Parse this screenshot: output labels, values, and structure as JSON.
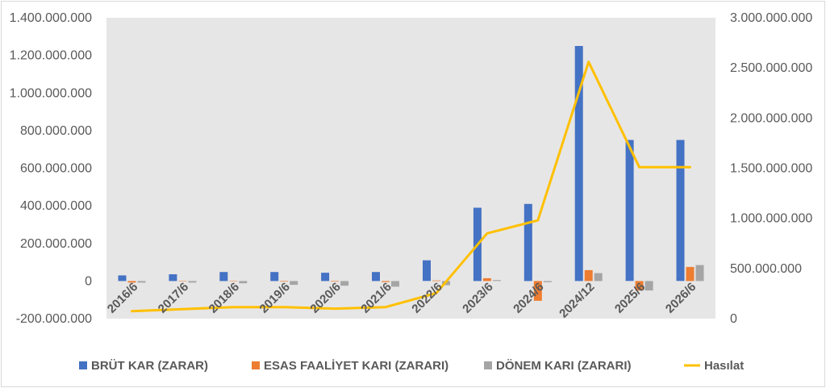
{
  "chart_data": {
    "type": "bar",
    "categories": [
      "2016/6",
      "2017/6",
      "2018/6",
      "2019/6",
      "2020/6",
      "2021/6",
      "2022/6",
      "2023/6",
      "2024/6",
      "2024/12",
      "2025/6",
      "2026/6"
    ],
    "series": [
      {
        "name": "BRÜT KAR (ZARAR)",
        "type": "bar",
        "axis": "left",
        "color": "#4472c4",
        "values": [
          30000000,
          36000000,
          48000000,
          48000000,
          44000000,
          48000000,
          110000000,
          390000000,
          410000000,
          1250000000,
          750000000,
          750000000
        ]
      },
      {
        "name": "ESAS FAALİYET KARI (ZARARI)",
        "type": "bar",
        "axis": "left",
        "color": "#ed7d31",
        "values": [
          -8000000,
          -2000000,
          -2000000,
          -3000000,
          -3000000,
          -5000000,
          3000000,
          15000000,
          -105000000,
          58000000,
          -50000000,
          75000000
        ]
      },
      {
        "name": "DÖNEM KARI (ZARARI)",
        "type": "bar",
        "axis": "left",
        "color": "#a5a5a5",
        "values": [
          -8000000,
          -8000000,
          -12000000,
          -20000000,
          -25000000,
          -30000000,
          -22000000,
          5000000,
          -6000000,
          42000000,
          -50000000,
          85000000
        ]
      },
      {
        "name": "Hasılat",
        "type": "line",
        "axis": "right",
        "color": "#ffc000",
        "values": [
          75000000,
          95000000,
          115000000,
          115000000,
          100000000,
          115000000,
          255000000,
          850000000,
          980000000,
          2560000000,
          1510000000,
          1510000000
        ]
      }
    ],
    "y_left": {
      "min": -200000000,
      "max": 1400000000,
      "step": 200000000,
      "tick_labels": [
        "-200.000.000",
        "0",
        "200.000.000",
        "400.000.000",
        "600.000.000",
        "800.000.000",
        "1.000.000.000",
        "1.200.000.000",
        "1.400.000.000"
      ]
    },
    "y_right": {
      "min": 0,
      "max": 3000000000,
      "step": 500000000,
      "tick_labels": [
        "0",
        "500.000.000",
        "1.000.000.000",
        "1.500.000.000",
        "2.000.000.000",
        "2.500.000.000",
        "3.000.000.000"
      ]
    },
    "grid": false,
    "plot_background": "#e7e6e6",
    "legend_position": "bottom"
  }
}
